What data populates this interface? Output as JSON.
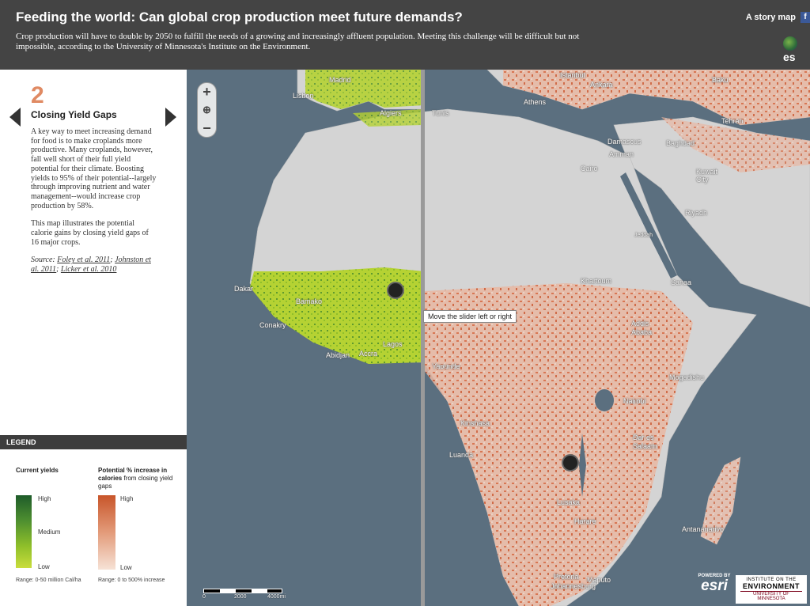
{
  "header": {
    "title": "Feeding the world: Can global crop production meet future demands?",
    "subtitle": "Crop production will have to double by 2050 to fulfill the needs of a growing and increasingly affluent population. Meeting this challenge will be difficult but not impossible, according to the University of Minnesota's Institute on the Environment.",
    "story_map": "A story map",
    "fb_icon": "f",
    "esri_mini": "es"
  },
  "panel": {
    "number": "2",
    "title": "Closing Yield Gaps",
    "paragraph1": "A key way to meet increasing demand for food is to make croplands more productive. Many croplands, however, fall well short of their full yield potential for their climate. Boosting yields to 95% of their potential--largely through improving nutrient and water management--would increase crop production by 58%.",
    "paragraph2": "This map illustrates the potential calorie gains by closing yield gaps of 16 major crops.",
    "source_label": "Source:",
    "source_links": [
      "Foley et al. 2011",
      "Johnston et al. 2011",
      "Licker et al. 2010"
    ]
  },
  "legend": {
    "title": "LEGEND",
    "current": {
      "heading": "Current yields",
      "high": "High",
      "medium": "Medium",
      "low": "Low",
      "range": "Range: 0-50 million Cal/ha"
    },
    "potential": {
      "heading_bold": "Potential % increase in calories",
      "heading_rest": " from closing yield gaps",
      "high": "High",
      "low": "Low",
      "range": "Range: 0 to 500% increase"
    }
  },
  "map": {
    "tooltip": "Move the slider left or right",
    "zoom_in": "+",
    "zoom_out": "−",
    "home": "⊕",
    "scale_labels": [
      "0",
      "2000",
      "4000mi"
    ],
    "powered_by": "POWERED BY",
    "esri": "esri",
    "ion_line1": "INSTITUTE ON THE",
    "ion_line2": "ENVIRONMENT",
    "ion_line3": "UNIVERSITY OF MINNESOTA",
    "cities": [
      {
        "name": "Madrid"
      },
      {
        "name": "Lisbon"
      },
      {
        "name": "Algiers"
      },
      {
        "name": "Tunis"
      },
      {
        "name": "Istanbul"
      },
      {
        "name": "Ankara"
      },
      {
        "name": "Baku"
      },
      {
        "name": "Athens"
      },
      {
        "name": "Tehran"
      },
      {
        "name": "Damascus"
      },
      {
        "name": "Amman"
      },
      {
        "name": "Baghdad"
      },
      {
        "name": "Cairo"
      },
      {
        "name": "Kuwait City"
      },
      {
        "name": "Riyadh"
      },
      {
        "name": "Jeddah"
      },
      {
        "name": "Dakar"
      },
      {
        "name": "Bamako"
      },
      {
        "name": "Khartoum"
      },
      {
        "name": "Sanaa"
      },
      {
        "name": "Conakry"
      },
      {
        "name": "Addis Ababa"
      },
      {
        "name": "Lagos"
      },
      {
        "name": "Abidjan"
      },
      {
        "name": "Accra"
      },
      {
        "name": "Yaounde"
      },
      {
        "name": "Mogadishu"
      },
      {
        "name": "Nairobi"
      },
      {
        "name": "Kinshasa"
      },
      {
        "name": "Dar es Salaam"
      },
      {
        "name": "Luanda"
      },
      {
        "name": "Lusaka"
      },
      {
        "name": "Harare"
      },
      {
        "name": "Antananarivo"
      },
      {
        "name": "Pretoria"
      },
      {
        "name": "Maputo"
      },
      {
        "name": "Johannesburg"
      }
    ]
  },
  "colors": {
    "header_bg": "#444444",
    "accent": "#e08a63",
    "ocean": "#5b6f7f",
    "land": "#d4d4d4",
    "green": "#a8cc2c",
    "orange": "#d9673e"
  }
}
